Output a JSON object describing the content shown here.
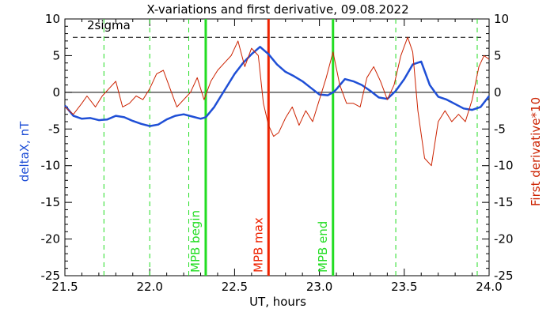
{
  "chart_data": {
    "type": "line",
    "title": "X-variations and first derivative, 09.08.2022",
    "xlabel": "UT, hours",
    "ylabel_left": "deltaX, nT",
    "ylabel_right": "First derivative*10",
    "xlim": [
      21.5,
      24.0
    ],
    "ylim": [
      -25,
      10
    ],
    "x_ticks": [
      "21.5",
      "22.0",
      "22.5",
      "23.0",
      "23.5",
      "24.0"
    ],
    "y_ticks": [
      "-25",
      "-20",
      "-15",
      "-10",
      "-5",
      "0",
      "5",
      "10"
    ],
    "grid": false,
    "colors": {
      "deltax": "#1f4fd6",
      "derivative": "#cc2200",
      "mpb_edges": "#22dd22",
      "mpb_max": "#ee2200",
      "reference": "#000000"
    },
    "series": [
      {
        "name": "deltaX, nT",
        "axis": "left",
        "x": [
          21.5,
          21.55,
          21.6,
          21.65,
          21.7,
          21.75,
          21.8,
          21.85,
          21.9,
          21.95,
          22.0,
          22.05,
          22.1,
          22.15,
          22.2,
          22.25,
          22.3,
          22.33,
          22.38,
          22.42,
          22.46,
          22.5,
          22.55,
          22.6,
          22.65,
          22.7,
          22.75,
          22.8,
          22.85,
          22.9,
          22.95,
          23.0,
          23.05,
          23.08,
          23.1,
          23.15,
          23.2,
          23.25,
          23.3,
          23.35,
          23.4,
          23.45,
          23.5,
          23.55,
          23.6,
          23.65,
          23.7,
          23.75,
          23.8,
          23.85,
          23.9,
          23.95,
          24.0
        ],
        "y": [
          -1.8,
          -3.2,
          -3.6,
          -3.5,
          -3.8,
          -3.7,
          -3.2,
          -3.4,
          -3.9,
          -4.3,
          -4.6,
          -4.4,
          -3.7,
          -3.2,
          -3.0,
          -3.3,
          -3.6,
          -3.4,
          -2.0,
          -0.5,
          1.0,
          2.5,
          4.0,
          5.2,
          6.2,
          5.2,
          3.8,
          2.8,
          2.2,
          1.5,
          0.6,
          -0.3,
          -0.4,
          0.0,
          0.4,
          1.8,
          1.5,
          1.0,
          0.2,
          -0.7,
          -0.9,
          0.2,
          1.8,
          3.8,
          4.2,
          1.0,
          -0.6,
          -1.0,
          -1.6,
          -2.2,
          -2.4,
          -2.0,
          -0.5
        ]
      },
      {
        "name": "First derivative*10",
        "axis": "right",
        "x": [
          21.5,
          21.55,
          21.6,
          21.63,
          21.68,
          21.72,
          21.76,
          21.8,
          21.84,
          21.88,
          21.92,
          21.96,
          22.0,
          22.04,
          22.08,
          22.12,
          22.16,
          22.2,
          22.24,
          22.28,
          22.32,
          22.36,
          22.4,
          22.44,
          22.48,
          22.52,
          22.56,
          22.6,
          22.64,
          22.67,
          22.7,
          22.73,
          22.76,
          22.8,
          22.84,
          22.88,
          22.92,
          22.96,
          23.0,
          23.04,
          23.08,
          23.12,
          23.16,
          23.2,
          23.24,
          23.28,
          23.32,
          23.36,
          23.4,
          23.44,
          23.48,
          23.52,
          23.55,
          23.58,
          23.62,
          23.66,
          23.7,
          23.74,
          23.78,
          23.82,
          23.86,
          23.9,
          23.94,
          23.97,
          24.0
        ],
        "y": [
          -2.0,
          -3.0,
          -1.5,
          -0.5,
          -2.0,
          -0.5,
          0.5,
          1.5,
          -2.0,
          -1.5,
          -0.5,
          -1.0,
          0.5,
          2.5,
          3.0,
          0.5,
          -2.0,
          -1.0,
          0.0,
          2.0,
          -1.0,
          1.5,
          3.0,
          4.0,
          5.0,
          7.0,
          3.5,
          6.0,
          5.0,
          -1.5,
          -4.5,
          -6.0,
          -5.5,
          -3.5,
          -2.0,
          -4.5,
          -2.5,
          -4.0,
          -1.0,
          2.0,
          5.5,
          1.0,
          -1.5,
          -1.5,
          -2.0,
          2.0,
          3.5,
          1.5,
          -1.0,
          1.0,
          5.0,
          7.5,
          5.5,
          -2.5,
          -9.0,
          -10.0,
          -4.0,
          -2.5,
          -4.0,
          -3.0,
          -4.0,
          -1.0,
          3.5,
          5.0,
          4.5
        ]
      }
    ],
    "threshold": {
      "label": "2sigma",
      "y": 7.5,
      "style": "dashed"
    },
    "zero_line": 0,
    "dashed_verticals": [
      21.73,
      22.0,
      22.23,
      23.45,
      23.93
    ],
    "markers": [
      {
        "label": "MPB begin",
        "x": 22.33,
        "color": "#22dd22"
      },
      {
        "label": "MPB max",
        "x": 22.7,
        "color": "#ee2200"
      },
      {
        "label": "MPB end",
        "x": 23.08,
        "color": "#22dd22"
      }
    ]
  }
}
